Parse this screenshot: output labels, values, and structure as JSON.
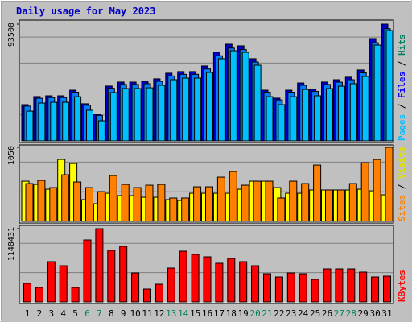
{
  "chart_data": [
    {
      "type": "bar",
      "title": "Daily usage for May 2023",
      "ylim": [
        0,
        93500
      ],
      "yticks": [
        93500
      ],
      "legend_separator": " / ",
      "series": [
        {
          "name": "Hits",
          "color": "#0000c8",
          "legend_color": "#008060",
          "values": [
            29000,
            35500,
            36100,
            36100,
            40600,
            29700,
            21300,
            43900,
            47100,
            47100,
            47700,
            49700,
            54200,
            55500,
            55500,
            60000,
            71000,
            77400,
            76100,
            65800,
            40600,
            34200,
            40600,
            46400,
            41300,
            47100,
            49000,
            51000,
            56800,
            81900,
            93500
          ]
        },
        {
          "name": "Files",
          "color": "#0080ff",
          "legend_color": "#0000ff",
          "values": [
            27800,
            34100,
            34700,
            34700,
            39000,
            28500,
            20400,
            42100,
            45200,
            45200,
            45800,
            47700,
            52000,
            53300,
            53300,
            57600,
            68200,
            74300,
            73100,
            63200,
            39000,
            32800,
            39000,
            44500,
            39600,
            45200,
            47000,
            49000,
            54500,
            78600,
            89800
          ]
        },
        {
          "name": "Pages",
          "color": "#00c0ff",
          "legend_color": "#00c0ff",
          "values": [
            23800,
            30300,
            30900,
            30900,
            35400,
            24500,
            16100,
            38700,
            41900,
            41900,
            42500,
            44500,
            49000,
            50300,
            50300,
            54800,
            65800,
            72200,
            70900,
            60600,
            35400,
            29000,
            35400,
            41200,
            36100,
            41900,
            43800,
            45800,
            51600,
            76700,
            88300
          ]
        }
      ]
    },
    {
      "type": "bar",
      "ylim": [
        0,
        1050
      ],
      "yticks": [
        1050
      ],
      "legend_separator": " / ",
      "series": [
        {
          "name": "Visits",
          "color": "#ffff00",
          "legend_color": "#e0e000",
          "values": [
            570,
            524,
            456,
            878,
            821,
            308,
            251,
            399,
            365,
            365,
            342,
            342,
            308,
            296,
            399,
            399,
            399,
            399,
            456,
            570,
            570,
            479,
            399,
            399,
            445,
            445,
            445,
            445,
            456,
            433,
            376
          ]
        },
        {
          "name": "Sites",
          "color": "#ff8000",
          "legend_color": "#ff8000",
          "values": [
            536,
            581,
            479,
            661,
            559,
            479,
            422,
            650,
            524,
            479,
            513,
            524,
            331,
            331,
            490,
            490,
            627,
            707,
            513,
            570,
            570,
            331,
            570,
            536,
            798,
            445,
            445,
            536,
            832,
            878,
            1050
          ]
        }
      ]
    },
    {
      "type": "bar",
      "ylim": [
        0,
        1148431
      ],
      "yticks": [
        1148431
      ],
      "categories": [
        "1",
        "2",
        "3",
        "4",
        "5",
        "6",
        "7",
        "8",
        "9",
        "10",
        "11",
        "12",
        "13",
        "14",
        "15",
        "16",
        "17",
        "18",
        "19",
        "20",
        "21",
        "22",
        "23",
        "24",
        "25",
        "26",
        "27",
        "28",
        "29",
        "30",
        "31"
      ],
      "category_colors": [
        "#000000",
        "#000000",
        "#000000",
        "#000000",
        "#000000",
        "#008060",
        "#008060",
        "#000000",
        "#000000",
        "#000000",
        "#000000",
        "#000000",
        "#008060",
        "#008060",
        "#000000",
        "#000000",
        "#000000",
        "#000000",
        "#000000",
        "#008060",
        "#008060",
        "#000000",
        "#000000",
        "#000000",
        "#000000",
        "#000000",
        "#008060",
        "#008060",
        "#000000",
        "#000000",
        "#000000"
      ],
      "series": [
        {
          "name": "KBytes",
          "color": "#ff0000",
          "legend_color": "#ff0000",
          "values": [
            290300,
            227200,
            631000,
            567900,
            227200,
            971700,
            1148431,
            807700,
            870800,
            454300,
            201900,
            277600,
            530000,
            795100,
            744600,
            706700,
            605800,
            681500,
            631000,
            567900,
            441700,
            391200,
            454300,
            441700,
            353400,
            517400,
            517400,
            517400,
            466900,
            391200,
            403800
          ]
        }
      ]
    }
  ]
}
